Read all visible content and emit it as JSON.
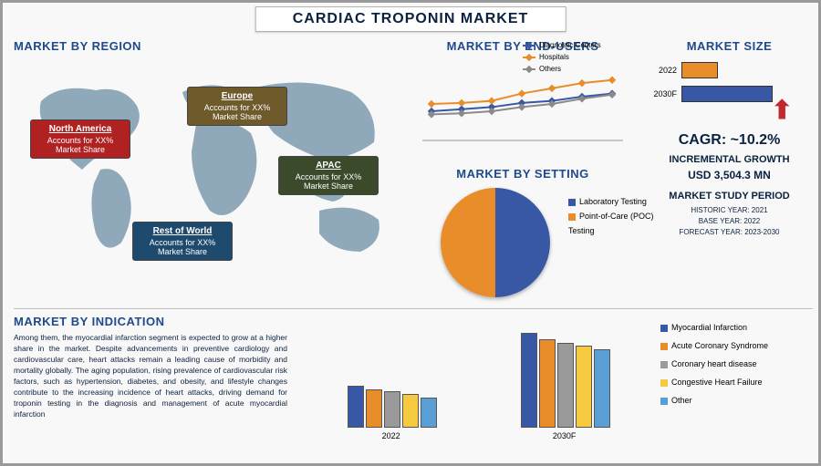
{
  "title": "CARDIAC TROPONIN MARKET",
  "map": {
    "title": "MARKET BY REGION",
    "color": "#2d5a7a",
    "regions": [
      {
        "name": "North America",
        "text": "Accounts for XX%\nMarket Share",
        "class": "region-na"
      },
      {
        "name": "Europe",
        "text": "Accounts for XX%\nMarket Share",
        "class": "region-eu"
      },
      {
        "name": "APAC",
        "text": "Accounts for XX%\nMarket Share",
        "class": "region-apac"
      },
      {
        "name": "Rest of World",
        "text": "Accounts for XX%\nMarket Share",
        "class": "region-row"
      }
    ]
  },
  "endusers": {
    "title": "MARKET BY END-USERS",
    "series": [
      {
        "name": "Diagnostic Centers",
        "color": "#3858a6",
        "points": [
          28,
          30,
          32,
          36,
          38,
          42,
          45
        ]
      },
      {
        "name": "Hospitals",
        "color": "#e98c2a",
        "points": [
          35,
          36,
          38,
          45,
          50,
          55,
          58
        ]
      },
      {
        "name": "Others",
        "color": "#8a8a8a",
        "points": [
          25,
          26,
          28,
          32,
          35,
          40,
          44
        ]
      }
    ],
    "ymax": 70
  },
  "setting": {
    "title": "MARKET BY SETTING",
    "slices": [
      {
        "name": "Laboratory Testing",
        "color": "#3858a6",
        "pct": 50
      },
      {
        "name": "Point-of-Care (POC) Testing",
        "color": "#e98c2a",
        "pct": 50
      }
    ]
  },
  "size": {
    "title": "MARKET SIZE",
    "bars": [
      {
        "label": "2030F",
        "value": 100,
        "color": "#3858a6"
      },
      {
        "label": "2022",
        "value": 40,
        "color": "#e98c2a"
      }
    ],
    "cagr_label": "CAGR:  ~10.2%",
    "incremental_label": "INCREMENTAL GROWTH",
    "incremental_value": "USD 3,504.3 MN",
    "period_title": "MARKET STUDY PERIOD",
    "period_lines": [
      "HISTORIC YEAR: 2021",
      "BASE YEAR: 2022",
      "FORECAST YEAR: 2023-2030"
    ]
  },
  "indication": {
    "title": "MARKET BY INDICATION",
    "paragraph": "Among them, the myocardial infarction segment is expected to grow at a higher share in the market. Despite advancements in preventive cardiology and cardiovascular care, heart attacks remain a leading cause of morbidity and mortality globally. The aging population, rising prevalence of cardiovascular risk factors, such as hypertension, diabetes, and obesity, and lifestyle changes contribute to the increasing incidence of heart attacks, driving demand for troponin testing in the diagnosis and management of acute myocardial infarction",
    "categories": [
      "2022",
      "2030F"
    ],
    "series": [
      {
        "name": "Myocardial Infarction",
        "color": "#3858a6"
      },
      {
        "name": "Acute Coronary Syndrome",
        "color": "#e98c2a"
      },
      {
        "name": "Coronary heart disease",
        "color": "#9a9a9a"
      },
      {
        "name": "Congestive Heart Failure",
        "color": "#f5c940"
      },
      {
        "name": "Other",
        "color": "#5a9ed6"
      }
    ],
    "values": [
      [
        42,
        38,
        36,
        34,
        30
      ],
      [
        95,
        88,
        85,
        82,
        78
      ]
    ],
    "ymax": 100
  }
}
